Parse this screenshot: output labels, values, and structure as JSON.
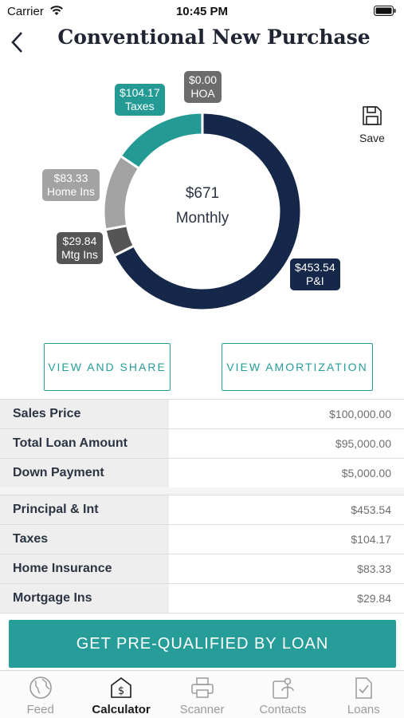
{
  "status_bar": {
    "carrier": "Carrier",
    "time": "10:45 PM"
  },
  "header": {
    "title": "Conventional New Purchase"
  },
  "chart": {
    "center_amount": "$671",
    "center_label": "Monthly",
    "colors": {
      "pi": "#15284a",
      "mtg_ins": "#555555",
      "home_ins": "#a3a3a3",
      "taxes": "#239a94",
      "hoa": "#6c6c6c"
    },
    "labels": {
      "hoa": {
        "amount": "$0.00",
        "name": "HOA"
      },
      "taxes": {
        "amount": "$104.17",
        "name": "Taxes"
      },
      "home_ins": {
        "amount": "$83.33",
        "name": "Home Ins"
      },
      "mtg_ins": {
        "amount": "$29.84",
        "name": "Mtg Ins"
      },
      "pi": {
        "amount": "$453.54",
        "name": "P&I"
      }
    }
  },
  "chart_data": {
    "type": "pie",
    "categories": [
      "P&I",
      "Mtg Ins",
      "Home Ins",
      "Taxes",
      "HOA"
    ],
    "values": [
      453.54,
      29.84,
      83.33,
      104.17,
      0.0
    ],
    "title": "",
    "total_label": "$671 Monthly"
  },
  "save": {
    "label": "Save"
  },
  "actions": {
    "view_share": "VIEW AND SHARE",
    "view_amortization": "VIEW AMORTIZATION"
  },
  "loan_table": [
    {
      "label": "Sales Price",
      "value": "$100,000.00"
    },
    {
      "label": "Total Loan Amount",
      "value": "$95,000.00"
    },
    {
      "label": "Down Payment",
      "value": "$5,000.00"
    }
  ],
  "payment_table": [
    {
      "label": "Principal & Int",
      "value": "$453.54"
    },
    {
      "label": "Taxes",
      "value": "$104.17"
    },
    {
      "label": "Home Insurance",
      "value": "$83.33"
    },
    {
      "label": "Mortgage Ins",
      "value": "$29.84"
    }
  ],
  "cta": {
    "label": "GET PRE-QUALIFIED BY LOAN"
  },
  "tabs": [
    {
      "label": "Feed",
      "icon": "globe-icon"
    },
    {
      "label": "Calculator",
      "icon": "calculator-icon"
    },
    {
      "label": "Scanner",
      "icon": "printer-icon"
    },
    {
      "label": "Contacts",
      "icon": "contacts-icon"
    },
    {
      "label": "Loans",
      "icon": "document-check-icon"
    }
  ]
}
